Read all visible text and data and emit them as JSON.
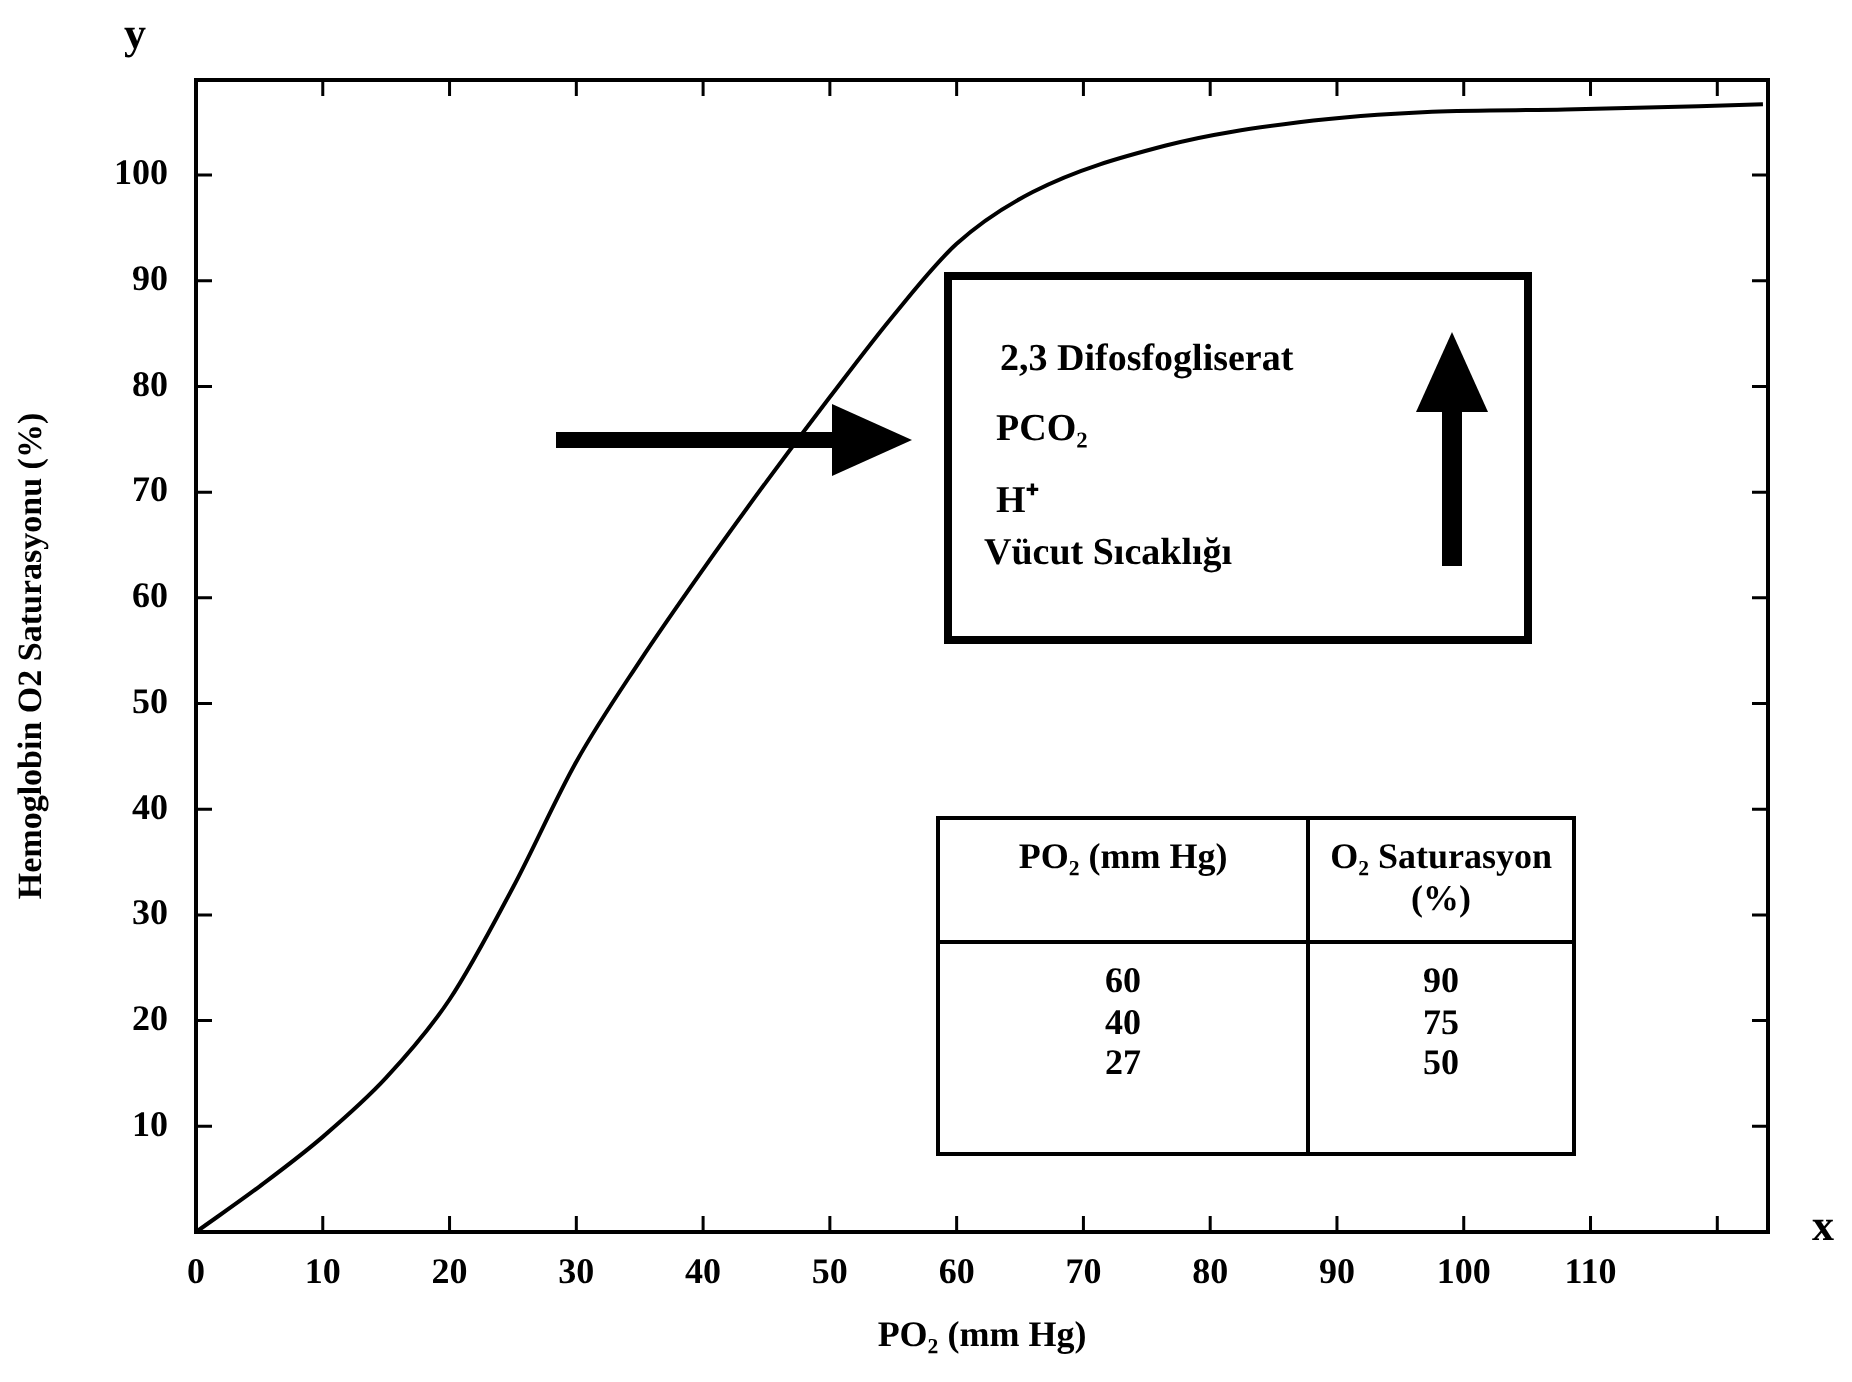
{
  "chart_data": {
    "type": "line",
    "xlabel": "PO₂ (mm Hg)",
    "ylabel": "Hemoglobin O2 Saturasyonu (%)",
    "xlim": [
      0,
      124
    ],
    "ylim": [
      0,
      109
    ],
    "xticks": [
      0,
      10,
      20,
      30,
      40,
      50,
      60,
      70,
      80,
      90,
      100,
      110,
      {
        "value": 120,
        "label": null
      }
    ],
    "yticks": [
      10,
      20,
      30,
      40,
      50,
      60,
      70,
      80,
      90,
      100
    ],
    "grid": false,
    "legend": false,
    "marker": "none",
    "line_style": "solid",
    "series": [
      {
        "color": "#000000",
        "x": [
          0,
          5,
          10,
          15,
          20,
          25,
          30,
          35,
          40,
          45,
          50,
          55,
          60,
          66,
          76.5,
          87,
          97.5,
          108,
          123.6
        ],
        "values": [
          0,
          4.3,
          9,
          14.6,
          22,
          32.6,
          44.5,
          54,
          62.7,
          71,
          79,
          86.7,
          93.5,
          98.4,
          102.8,
          105,
          106,
          106.2,
          106.7
        ]
      }
    ],
    "annotations": [
      "y",
      "x",
      "2,3 Difosfogliserat",
      "PCO₂",
      "H⁺",
      "Vücut Sıcaklığı",
      "PO₂ (mm Hg)",
      "O₂ Saturasyon (%)",
      "60",
      "40",
      "27",
      "90",
      "75",
      "50"
    ]
  }
}
